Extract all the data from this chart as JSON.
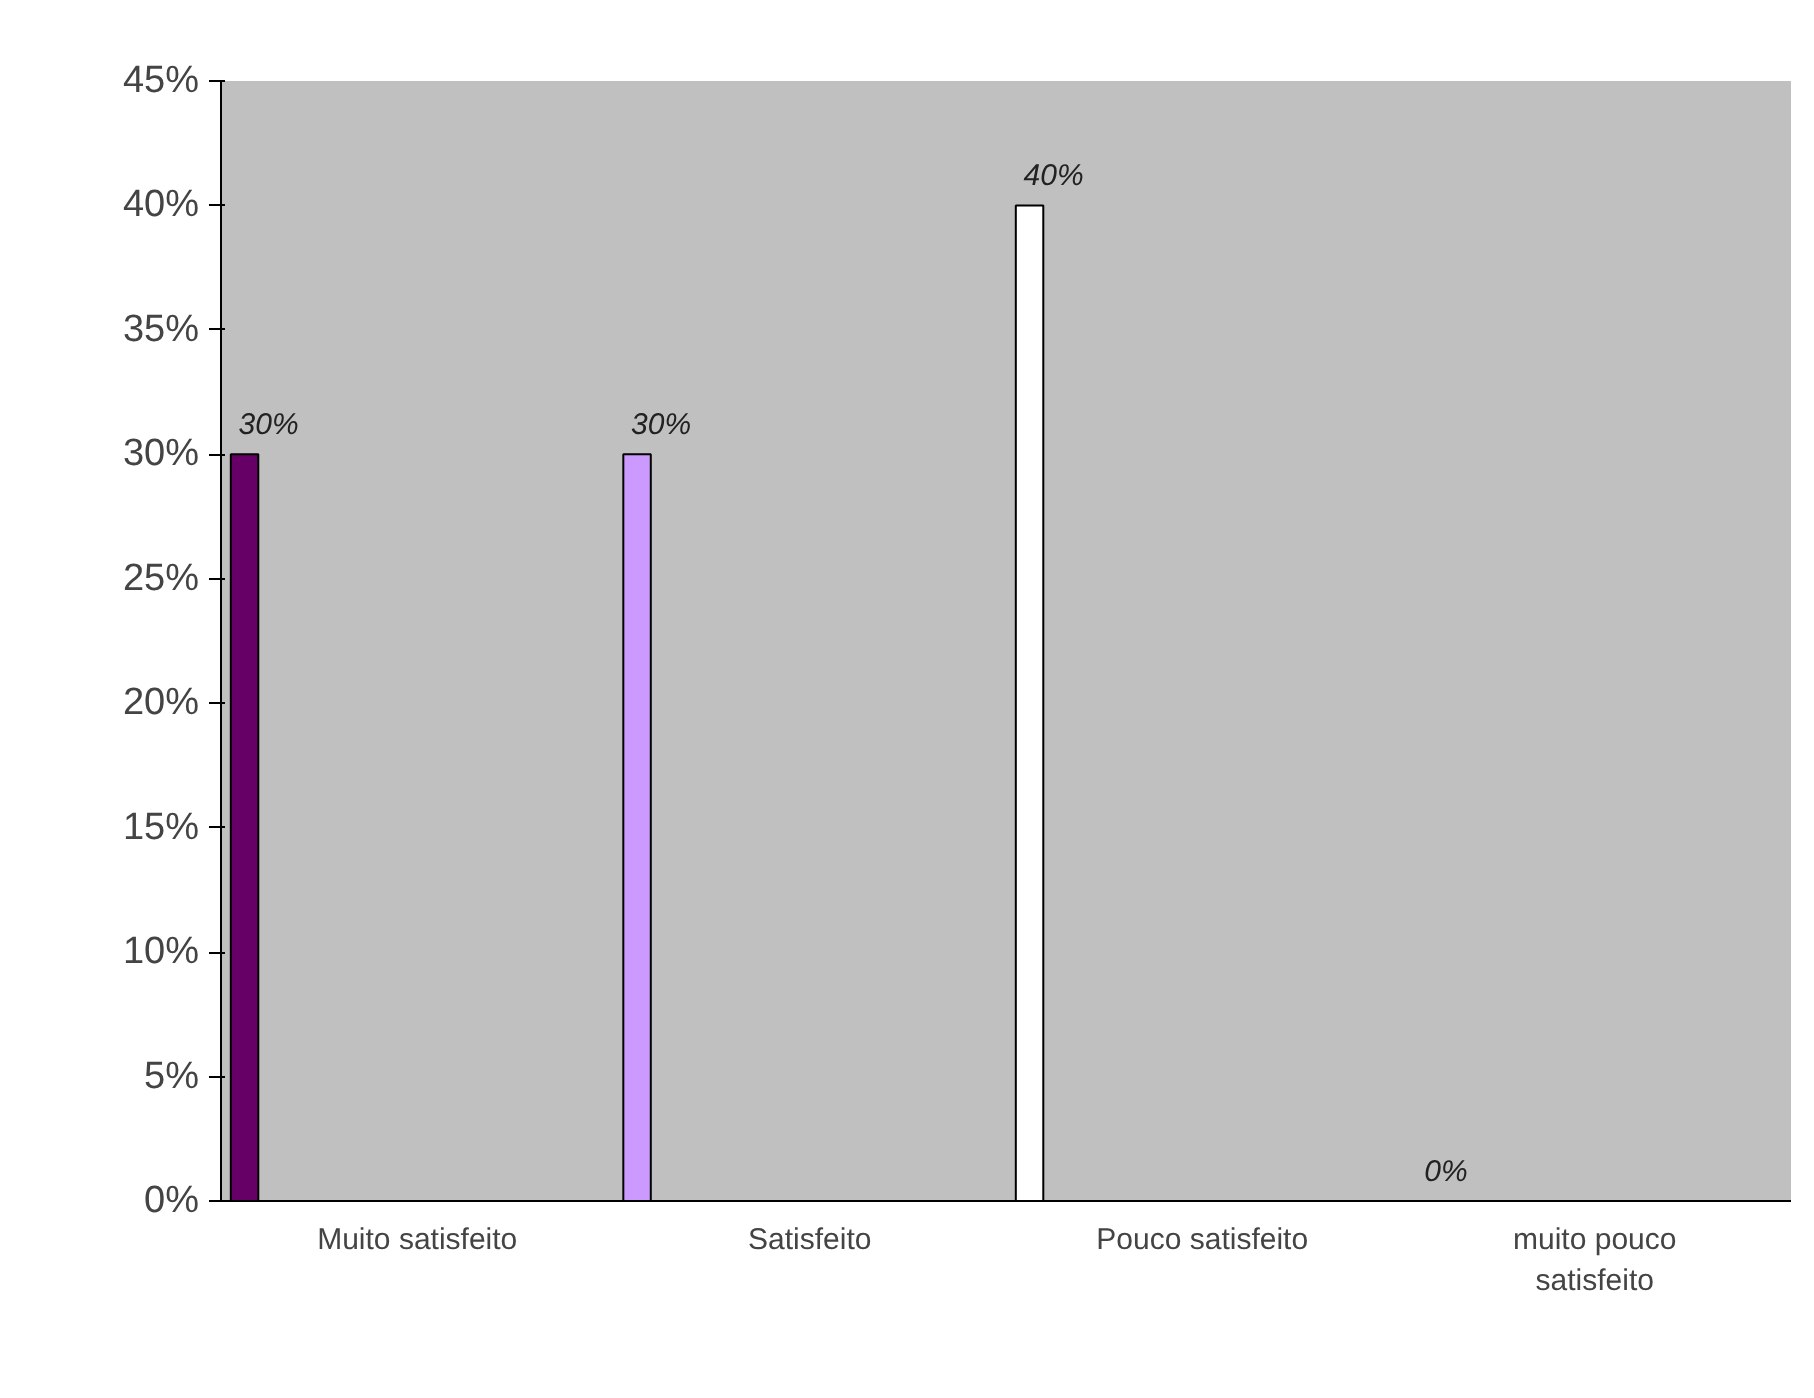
{
  "chart_data": {
    "type": "bar",
    "categories": [
      "Muito satisfeito",
      "Satisfeito",
      "Pouco satisfeito",
      "muito pouco satisfeito"
    ],
    "values": [
      30,
      30,
      40,
      0
    ],
    "colors": [
      "#660066",
      "#cc99ff",
      "#ffffff",
      "#ccffff"
    ],
    "value_labels": [
      "30%",
      "30%",
      "40%",
      "0%"
    ],
    "ylim": [
      0,
      45
    ],
    "yticks": [
      {
        "value": 0,
        "label": "0%"
      },
      {
        "value": 5,
        "label": "5%"
      },
      {
        "value": 10,
        "label": "10%"
      },
      {
        "value": 15,
        "label": "15%"
      },
      {
        "value": 20,
        "label": "20%"
      },
      {
        "value": 25,
        "label": "25%"
      },
      {
        "value": 30,
        "label": "30%"
      },
      {
        "value": 35,
        "label": "35%"
      },
      {
        "value": 40,
        "label": "40%"
      },
      {
        "value": 45,
        "label": "45%"
      }
    ],
    "grid": false
  }
}
